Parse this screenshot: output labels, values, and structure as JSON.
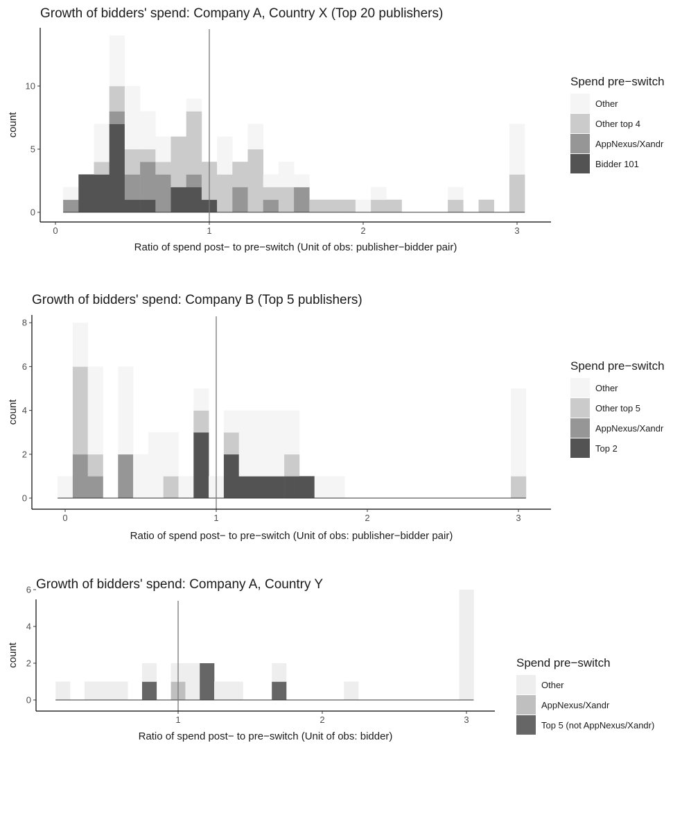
{
  "chart_data": [
    {
      "type": "bar",
      "stacked": true,
      "title": "Growth of bidders' spend: Company A, Country X (Top 20 publishers)",
      "xlabel": "Ratio of spend post− to pre−switch (Unit of obs: publisher−bidder pair)",
      "ylabel": "count",
      "xlim": [
        -0.1,
        3.1
      ],
      "ylim": [
        0,
        14
      ],
      "x_ticks": [
        0,
        1,
        2,
        3
      ],
      "y_ticks": [
        0,
        5,
        10
      ],
      "vline": 1,
      "bin_start": 0.05,
      "bin_width": 0.1,
      "legend_title": "Spend pre−switch",
      "legend_position": "right",
      "series": [
        {
          "name": "Bidder 101",
          "color": "#535353",
          "values": [
            0,
            3,
            3,
            7,
            1,
            1,
            0,
            2,
            2,
            1,
            0,
            0,
            0,
            0,
            0,
            0,
            0,
            0,
            0,
            0,
            0,
            0,
            0,
            0,
            0,
            0,
            0,
            0,
            0,
            0
          ]
        },
        {
          "name": "AppNexus/Xandr",
          "color": "#969696",
          "values": [
            1,
            0,
            0,
            1,
            2,
            3,
            3,
            0,
            1,
            0,
            0,
            2,
            0,
            1,
            0,
            2,
            0,
            0,
            0,
            0,
            0,
            0,
            0,
            0,
            0,
            0,
            0,
            0,
            0,
            0
          ]
        },
        {
          "name": "Other top 4",
          "color": "#cbcbcb",
          "values": [
            0,
            0,
            1,
            2,
            2,
            1,
            1,
            4,
            5,
            3,
            3,
            2,
            5,
            1,
            2,
            0,
            1,
            1,
            1,
            0,
            1,
            1,
            0,
            0,
            0,
            1,
            0,
            1,
            0,
            3
          ]
        },
        {
          "name": "Other",
          "color": "#f5f5f5",
          "values": [
            1,
            0,
            3,
            4,
            5,
            3,
            2,
            0,
            1,
            0,
            3,
            0,
            2,
            1,
            2,
            1,
            0,
            0,
            0,
            1,
            1,
            0,
            0,
            0,
            0,
            1,
            0,
            0,
            0,
            4
          ]
        }
      ]
    },
    {
      "type": "bar",
      "stacked": true,
      "title": "Growth of bidders' spend: Company B (Top 5 publishers)",
      "xlabel": "Ratio of spend post− to pre−switch (Unit of obs: publisher−bidder pair)",
      "ylabel": "count",
      "xlim": [
        -0.1,
        3.1
      ],
      "ylim": [
        0,
        8.2
      ],
      "x_ticks": [
        0,
        1,
        2,
        3
      ],
      "y_ticks": [
        0,
        2,
        4,
        6,
        8
      ],
      "vline": 1,
      "bin_start": -0.05,
      "bin_width": 0.1,
      "legend_title": "Spend pre−switch",
      "legend_position": "right",
      "series": [
        {
          "name": "Top 2",
          "color": "#535353",
          "values": [
            0,
            0,
            0,
            0,
            0,
            0,
            0,
            0,
            0,
            3,
            0,
            2,
            1,
            1,
            1,
            1,
            1,
            0,
            0,
            0,
            0,
            0,
            0,
            0,
            0,
            0,
            0,
            0,
            0,
            0,
            0
          ]
        },
        {
          "name": "AppNexus/Xandr",
          "color": "#969696",
          "values": [
            0,
            2,
            1,
            0,
            2,
            0,
            0,
            0,
            0,
            0,
            0,
            0,
            0,
            0,
            0,
            0,
            0,
            0,
            0,
            0,
            0,
            0,
            0,
            0,
            0,
            0,
            0,
            0,
            0,
            0,
            0
          ]
        },
        {
          "name": "Other top 5",
          "color": "#cbcbcb",
          "values": [
            0,
            4,
            1,
            0,
            0,
            0,
            0,
            1,
            0,
            1,
            0,
            1,
            0,
            0,
            0,
            1,
            0,
            0,
            0,
            0,
            0,
            0,
            0,
            0,
            0,
            0,
            0,
            0,
            0,
            0,
            1
          ]
        },
        {
          "name": "Other",
          "color": "#f5f5f5",
          "values": [
            1,
            2,
            4,
            0,
            4,
            2,
            3,
            2,
            1,
            1,
            1,
            1,
            3,
            3,
            3,
            2,
            0,
            1,
            1,
            0,
            0,
            0,
            0,
            0,
            0,
            0,
            0,
            0,
            0,
            0,
            4
          ]
        }
      ]
    },
    {
      "type": "bar",
      "stacked": true,
      "title": "Growth of bidders' spend: Company A, Country Y",
      "xlabel": "Ratio of spend post− to pre−switch (Unit of obs: bidder)",
      "ylabel": "count",
      "xlim": [
        0.13,
        3.2
      ],
      "ylim": [
        0,
        6.3
      ],
      "x_ticks": [
        1,
        2,
        3
      ],
      "y_ticks": [
        0,
        2,
        4,
        6
      ],
      "vline": 1,
      "bin_start": 0.15,
      "bin_width": 0.1,
      "legend_title": "Spend pre−switch",
      "legend_position": "right",
      "series": [
        {
          "name": "Top 5 (not AppNexus/Xandr)",
          "color": "#666666",
          "values": [
            0,
            0,
            0,
            0,
            0,
            0,
            1,
            0,
            0,
            0,
            2,
            0,
            0,
            0,
            0,
            1,
            0,
            0,
            0,
            0,
            0,
            0,
            0,
            0,
            0,
            0,
            0,
            0,
            0
          ]
        },
        {
          "name": "AppNexus/Xandr",
          "color": "#bfbfbf",
          "values": [
            0,
            0,
            0,
            0,
            0,
            0,
            0,
            0,
            1,
            0,
            0,
            0,
            0,
            0,
            0,
            0,
            0,
            0,
            0,
            0,
            0,
            0,
            0,
            0,
            0,
            0,
            0,
            0,
            0
          ]
        },
        {
          "name": "Other",
          "color": "#eeeeee",
          "values": [
            1,
            0,
            1,
            1,
            1,
            0,
            1,
            0,
            1,
            2,
            0,
            1,
            1,
            0,
            0,
            1,
            0,
            0,
            0,
            0,
            1,
            0,
            0,
            0,
            0,
            0,
            0,
            0,
            6
          ]
        }
      ]
    }
  ]
}
